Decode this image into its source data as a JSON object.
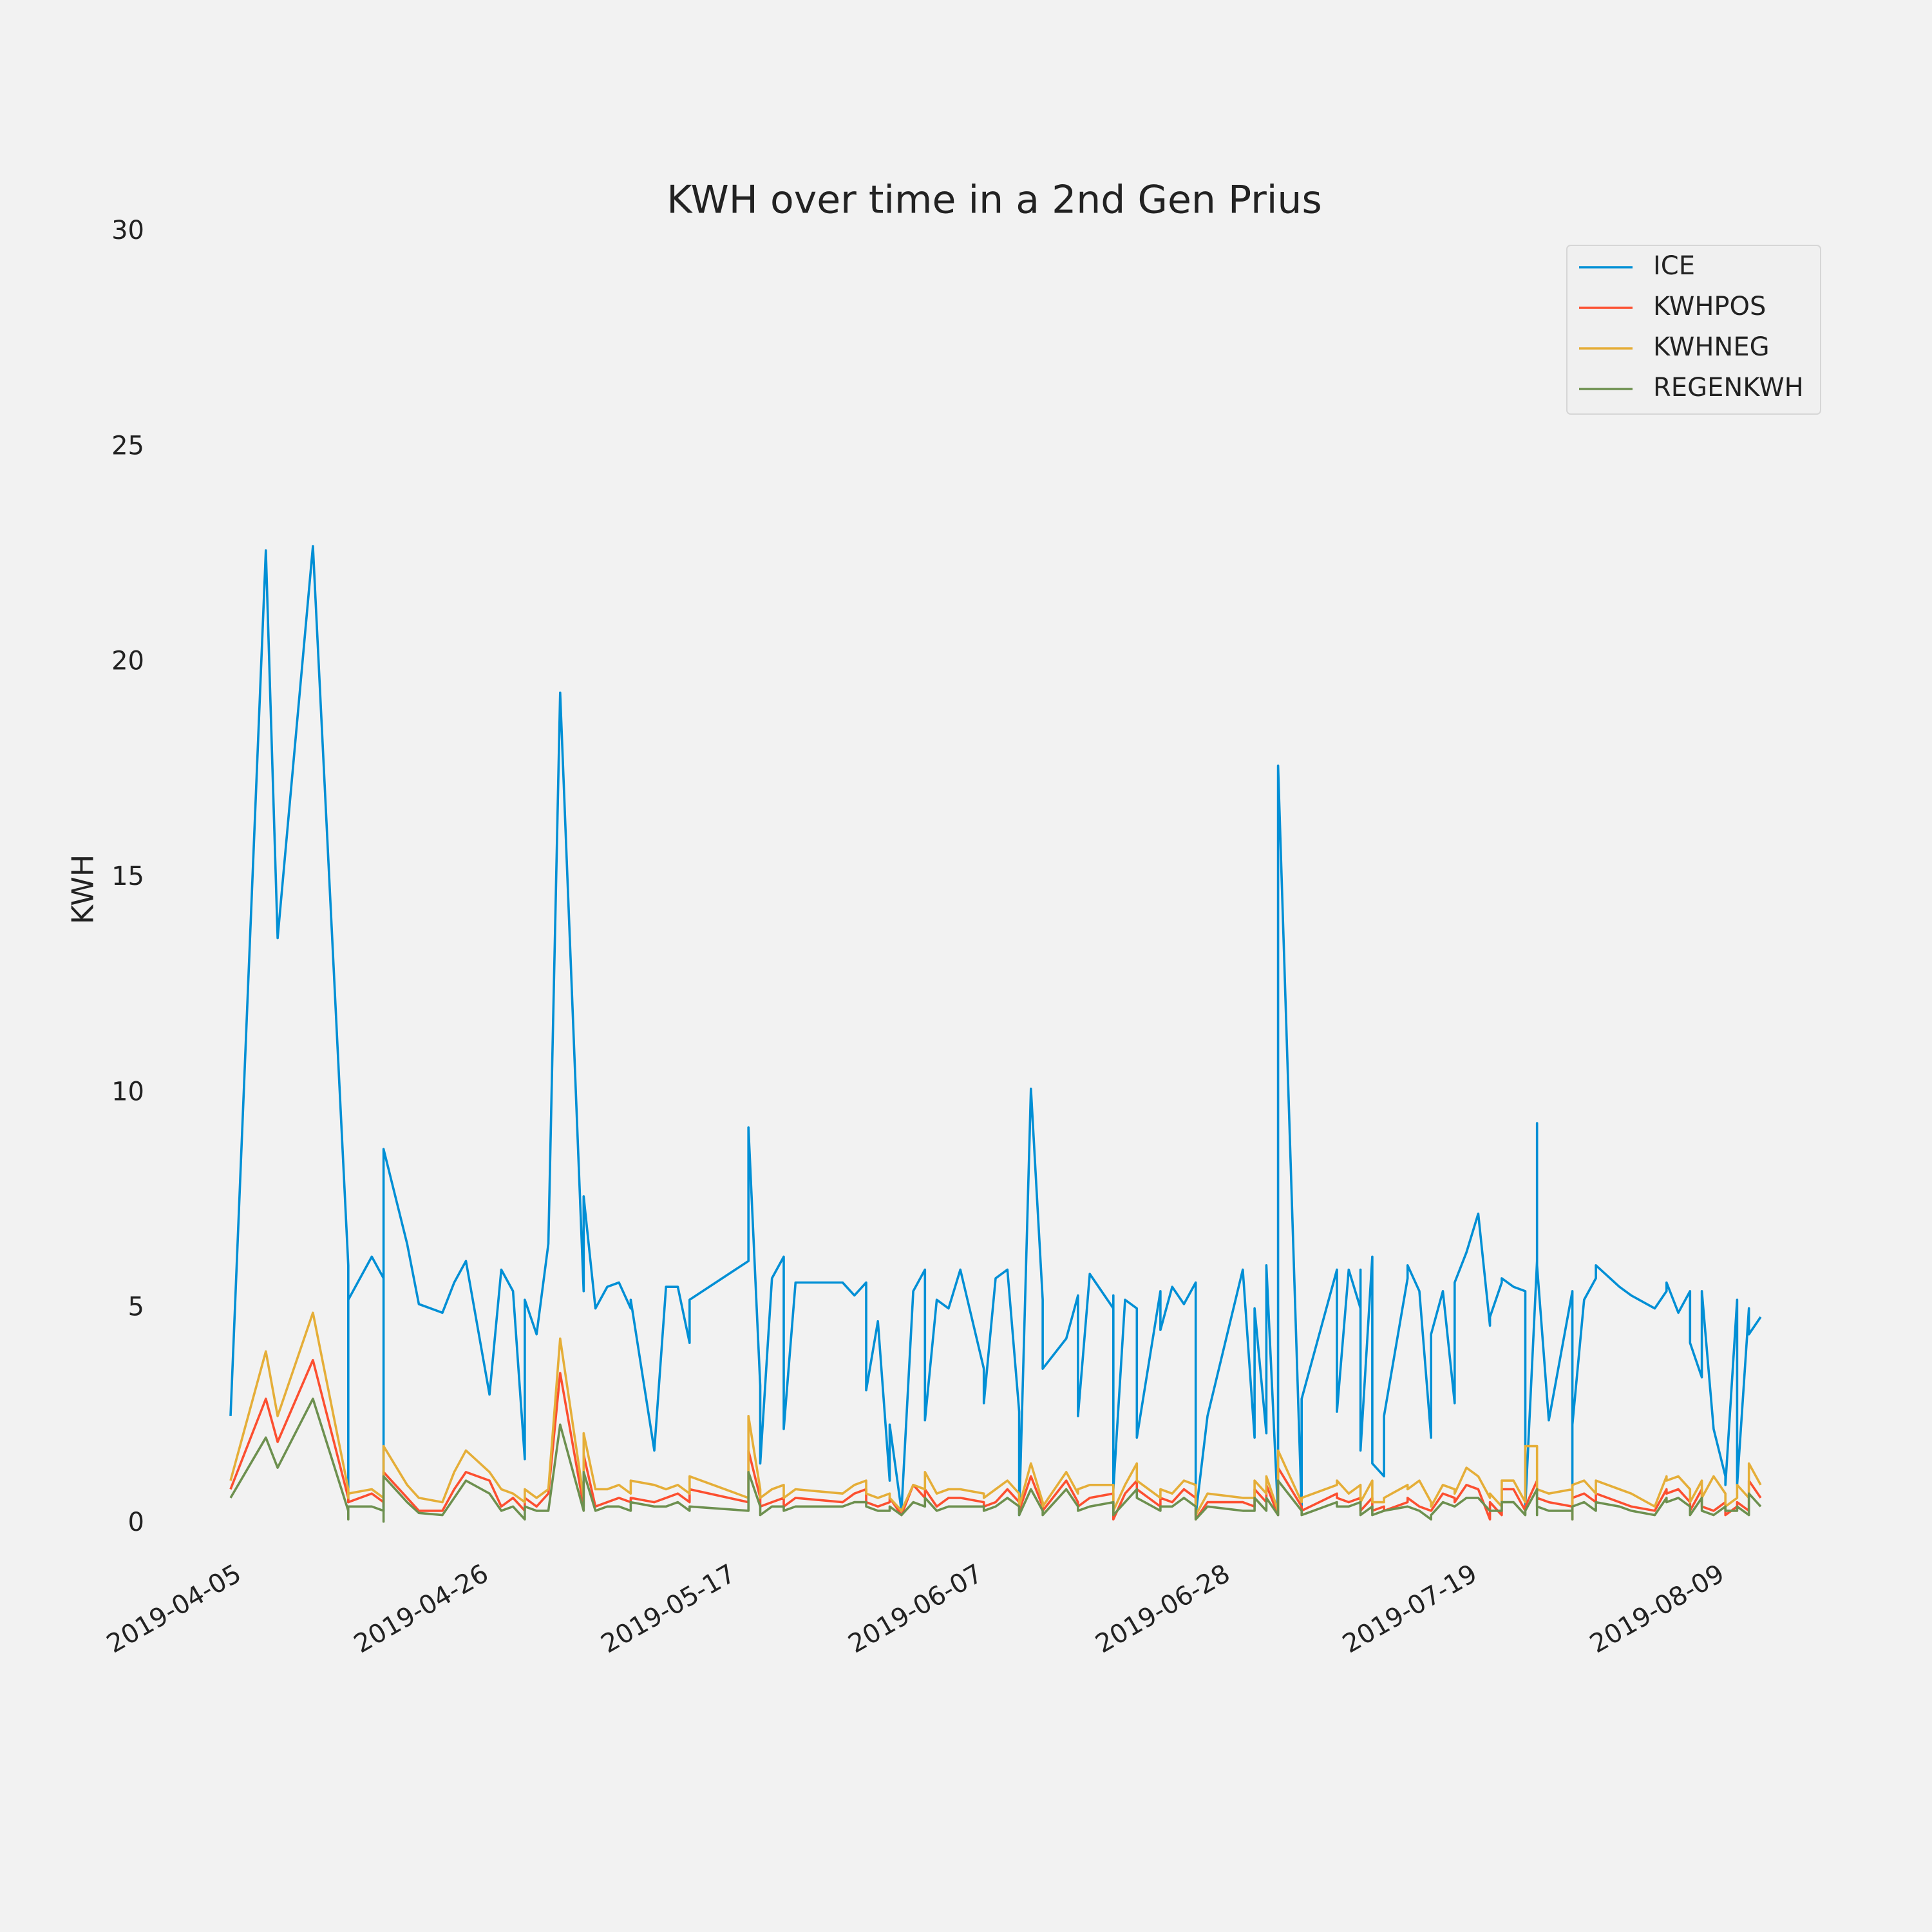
{
  "chart_data": {
    "type": "line",
    "title": "KWH over time in a 2nd Gen Prius",
    "ylabel": "KWH",
    "xlim": [
      "2019-04-05",
      "2019-08-13"
    ],
    "xticks": [
      "2019-04-05",
      "2019-04-26",
      "2019-05-17",
      "2019-06-07",
      "2019-06-28",
      "2019-07-19",
      "2019-08-09"
    ],
    "ylim": [
      0,
      30
    ],
    "yticks": [
      0,
      5,
      10,
      15,
      20,
      25,
      30
    ],
    "grid": false,
    "legend": "upper right",
    "x": [
      "2019-04-05",
      "2019-04-08",
      "2019-04-09",
      "2019-04-12",
      "2019-04-15",
      "2019-04-15",
      "2019-04-15",
      "2019-04-17",
      "2019-04-18",
      "2019-04-18",
      "2019-04-18",
      "2019-04-20",
      "2019-04-21",
      "2019-04-23",
      "2019-04-24",
      "2019-04-25",
      "2019-04-27",
      "2019-04-28",
      "2019-04-29",
      "2019-04-30",
      "2019-04-30",
      "2019-05-01",
      "2019-05-02",
      "2019-05-03",
      "2019-05-05",
      "2019-05-05",
      "2019-05-06",
      "2019-05-07",
      "2019-05-08",
      "2019-05-09",
      "2019-05-09",
      "2019-05-11",
      "2019-05-12",
      "2019-05-13",
      "2019-05-14",
      "2019-05-14",
      "2019-05-19",
      "2019-05-19",
      "2019-05-20",
      "2019-05-20",
      "2019-05-21",
      "2019-05-22",
      "2019-05-22",
      "2019-05-23",
      "2019-05-27",
      "2019-05-28",
      "2019-05-29",
      "2019-05-29",
      "2019-05-30",
      "2019-05-31",
      "2019-05-31",
      "2019-06-01",
      "2019-06-02",
      "2019-06-03",
      "2019-06-03",
      "2019-06-04",
      "2019-06-05",
      "2019-06-06",
      "2019-06-08",
      "2019-06-08",
      "2019-06-09",
      "2019-06-10",
      "2019-06-11",
      "2019-06-11",
      "2019-06-12",
      "2019-06-13",
      "2019-06-13",
      "2019-06-15",
      "2019-06-16",
      "2019-06-16",
      "2019-06-17",
      "2019-06-19",
      "2019-06-19",
      "2019-06-19",
      "2019-06-20",
      "2019-06-21",
      "2019-06-21",
      "2019-06-23",
      "2019-06-23",
      "2019-06-24",
      "2019-06-25",
      "2019-06-26",
      "2019-06-26",
      "2019-06-26",
      "2019-06-27",
      "2019-06-30",
      "2019-07-01",
      "2019-07-01",
      "2019-07-02",
      "2019-07-02",
      "2019-07-02",
      "2019-07-03",
      "2019-07-03",
      "2019-07-05",
      "2019-07-05",
      "2019-07-08",
      "2019-07-08",
      "2019-07-09",
      "2019-07-10",
      "2019-07-10",
      "2019-07-10",
      "2019-07-11",
      "2019-07-11",
      "2019-07-12",
      "2019-07-12",
      "2019-07-14",
      "2019-07-14",
      "2019-07-15",
      "2019-07-16",
      "2019-07-16",
      "2019-07-17",
      "2019-07-18",
      "2019-07-18",
      "2019-07-19",
      "2019-07-20",
      "2019-07-21",
      "2019-07-21",
      "2019-07-22",
      "2019-07-22",
      "2019-07-23",
      "2019-07-24",
      "2019-07-24",
      "2019-07-25",
      "2019-07-25",
      "2019-07-25",
      "2019-07-26",
      "2019-07-28",
      "2019-07-28",
      "2019-07-28",
      "2019-07-29",
      "2019-07-30",
      "2019-07-30",
      "2019-08-01",
      "2019-08-02",
      "2019-08-04",
      "2019-08-05",
      "2019-08-05",
      "2019-08-06",
      "2019-08-07",
      "2019-08-07",
      "2019-08-08",
      "2019-08-08",
      "2019-08-09",
      "2019-08-10",
      "2019-08-10",
      "2019-08-11",
      "2019-08-11",
      "2019-08-12",
      "2019-08-12",
      "2019-08-13"
    ],
    "series": [
      {
        "name": "ICE",
        "color": "#008fd5",
        "values": [
          2.5,
          22.6,
          13.6,
          22.7,
          6.0,
          0.5,
          5.2,
          6.2,
          5.7,
          0.3,
          8.7,
          6.5,
          5.1,
          4.9,
          5.6,
          6.1,
          3.0,
          5.9,
          5.4,
          1.5,
          5.2,
          4.4,
          6.5,
          19.3,
          5.4,
          7.6,
          5.0,
          5.5,
          5.6,
          5.0,
          5.2,
          1.7,
          5.5,
          5.5,
          4.2,
          5.2,
          6.1,
          9.2,
          3.2,
          1.4,
          5.7,
          6.2,
          2.2,
          5.6,
          5.6,
          5.3,
          5.6,
          3.1,
          4.7,
          1.0,
          2.3,
          0.3,
          5.4,
          5.9,
          2.4,
          5.2,
          5.0,
          5.9,
          3.6,
          2.8,
          5.7,
          5.9,
          2.6,
          0.2,
          10.1,
          5.2,
          3.6,
          4.3,
          5.3,
          2.5,
          5.8,
          5.0,
          5.3,
          0.8,
          5.2,
          5.0,
          2.0,
          5.4,
          4.5,
          5.5,
          5.1,
          5.6,
          4.9,
          0.2,
          2.5,
          5.9,
          2.0,
          5.0,
          2.1,
          5.5,
          6.0,
          0.2,
          17.6,
          0.3,
          2.9,
          5.9,
          2.6,
          5.9,
          5.0,
          5.9,
          1.7,
          6.2,
          1.4,
          1.1,
          2.5,
          5.7,
          6.0,
          5.4,
          2.0,
          4.4,
          5.4,
          2.8,
          5.6,
          6.3,
          7.2,
          4.6,
          4.8,
          5.6,
          5.7,
          5.5,
          5.4,
          0.4,
          6.1,
          9.3,
          6.0,
          2.4,
          5.4,
          0.3,
          2.3,
          5.2,
          5.7,
          6.0,
          5.5,
          5.3,
          5.0,
          5.4,
          5.6,
          4.9,
          5.4,
          4.2,
          3.4,
          5.4,
          2.2,
          1.1,
          0.9,
          5.2,
          0.9,
          5.0,
          4.4,
          4.8
        ]
      },
      {
        "name": "KWHPOS",
        "color": "#fc4f30",
        "values": [
          0.8,
          2.9,
          1.9,
          3.8,
          0.6,
          0.5,
          0.5,
          0.7,
          0.5,
          0.4,
          1.2,
          0.6,
          0.3,
          0.3,
          0.8,
          1.2,
          1.0,
          0.4,
          0.6,
          0.3,
          0.6,
          0.4,
          0.7,
          3.5,
          0.4,
          1.6,
          0.4,
          0.5,
          0.6,
          0.5,
          0.6,
          0.5,
          0.6,
          0.7,
          0.5,
          0.8,
          0.5,
          1.7,
          0.6,
          0.4,
          0.5,
          0.6,
          0.4,
          0.6,
          0.5,
          0.7,
          0.8,
          0.5,
          0.4,
          0.5,
          0.6,
          0.2,
          0.9,
          0.6,
          0.8,
          0.4,
          0.6,
          0.6,
          0.5,
          0.4,
          0.5,
          0.8,
          0.5,
          0.3,
          1.1,
          0.4,
          0.3,
          1.0,
          0.5,
          0.4,
          0.6,
          0.7,
          0.6,
          0.1,
          0.7,
          1.0,
          0.8,
          0.4,
          0.6,
          0.5,
          0.8,
          0.6,
          0.3,
          0.1,
          0.5,
          0.5,
          0.4,
          0.8,
          0.5,
          0.6,
          0.9,
          0.2,
          1.3,
          0.4,
          0.3,
          0.7,
          0.6,
          0.5,
          0.6,
          0.4,
          0.3,
          0.6,
          0.3,
          0.4,
          0.3,
          0.5,
          0.6,
          0.4,
          0.3,
          0.3,
          0.7,
          0.6,
          0.5,
          0.9,
          0.8,
          0.1,
          0.5,
          0.2,
          0.8,
          0.8,
          0.3,
          0.4,
          1.0,
          0.4,
          0.6,
          0.5,
          0.4,
          0.1,
          0.6,
          0.7,
          0.5,
          0.7,
          0.5,
          0.4,
          0.3,
          0.8,
          0.7,
          0.8,
          0.5,
          0.3,
          0.8,
          0.4,
          0.3,
          0.5,
          0.2,
          0.4,
          0.5,
          0.3,
          1.0,
          0.6
        ]
      },
      {
        "name": "KWHNEG",
        "color": "#e5ae38",
        "values": [
          1.0,
          4.0,
          2.5,
          4.9,
          0.8,
          0.6,
          0.7,
          0.8,
          0.6,
          0.5,
          1.8,
          0.9,
          0.6,
          0.5,
          1.2,
          1.7,
          1.2,
          0.8,
          0.7,
          0.5,
          0.8,
          0.6,
          0.8,
          4.3,
          0.6,
          2.1,
          0.8,
          0.8,
          0.9,
          0.7,
          1.0,
          0.9,
          0.8,
          0.9,
          0.7,
          1.1,
          0.6,
          2.5,
          0.8,
          0.6,
          0.8,
          0.9,
          0.6,
          0.8,
          0.7,
          0.9,
          1.0,
          0.7,
          0.6,
          0.7,
          0.6,
          0.3,
          0.9,
          0.8,
          1.2,
          0.7,
          0.8,
          0.8,
          0.7,
          0.6,
          0.8,
          1.0,
          0.7,
          0.4,
          1.4,
          0.5,
          0.4,
          1.2,
          0.7,
          0.8,
          0.9,
          0.9,
          0.8,
          0.3,
          0.9,
          1.4,
          1.0,
          0.6,
          0.8,
          0.7,
          1.0,
          0.9,
          0.5,
          0.2,
          0.7,
          0.6,
          0.6,
          1.0,
          0.7,
          0.8,
          1.1,
          0.3,
          1.7,
          0.5,
          0.6,
          0.9,
          1.0,
          0.7,
          0.9,
          0.7,
          0.5,
          1.0,
          0.5,
          0.5,
          0.6,
          0.9,
          0.8,
          1.0,
          0.5,
          0.4,
          0.9,
          0.8,
          0.7,
          1.3,
          1.1,
          0.6,
          0.7,
          0.4,
          1.0,
          1.0,
          0.5,
          1.8,
          1.8,
          0.5,
          0.8,
          0.7,
          0.8,
          0.2,
          0.9,
          1.0,
          0.7,
          1.0,
          0.8,
          0.7,
          0.4,
          1.1,
          1.0,
          1.1,
          0.8,
          0.5,
          1.0,
          0.6,
          1.1,
          0.7,
          0.4,
          0.6,
          0.9,
          0.6,
          1.4,
          0.9
        ]
      },
      {
        "name": "REGENKWH",
        "color": "#6d904f",
        "values": [
          0.6,
          2.0,
          1.3,
          2.9,
          0.3,
          0.1,
          0.4,
          0.4,
          0.3,
          0.05,
          1.1,
          0.5,
          0.25,
          0.2,
          0.6,
          1.0,
          0.7,
          0.3,
          0.4,
          0.1,
          0.4,
          0.3,
          0.3,
          2.3,
          0.3,
          1.2,
          0.3,
          0.4,
          0.4,
          0.3,
          0.5,
          0.4,
          0.4,
          0.5,
          0.3,
          0.4,
          0.3,
          1.2,
          0.4,
          0.2,
          0.4,
          0.4,
          0.3,
          0.4,
          0.4,
          0.5,
          0.5,
          0.4,
          0.3,
          0.3,
          0.4,
          0.2,
          0.5,
          0.4,
          0.6,
          0.3,
          0.4,
          0.4,
          0.4,
          0.3,
          0.4,
          0.6,
          0.4,
          0.2,
          0.8,
          0.3,
          0.2,
          0.8,
          0.4,
          0.3,
          0.4,
          0.5,
          0.4,
          0.2,
          0.5,
          0.8,
          0.6,
          0.3,
          0.4,
          0.4,
          0.6,
          0.4,
          0.2,
          0.1,
          0.4,
          0.3,
          0.3,
          0.6,
          0.3,
          0.4,
          0.6,
          0.2,
          1.0,
          0.3,
          0.2,
          0.5,
          0.4,
          0.4,
          0.5,
          0.3,
          0.2,
          0.4,
          0.2,
          0.3,
          0.3,
          0.4,
          0.4,
          0.3,
          0.1,
          0.2,
          0.5,
          0.4,
          0.4,
          0.6,
          0.6,
          0.3,
          0.3,
          0.3,
          0.5,
          0.5,
          0.2,
          0.3,
          0.8,
          0.2,
          0.4,
          0.3,
          0.3,
          0.1,
          0.4,
          0.5,
          0.3,
          0.5,
          0.4,
          0.3,
          0.2,
          0.6,
          0.5,
          0.6,
          0.4,
          0.2,
          0.6,
          0.3,
          0.2,
          0.4,
          0.3,
          0.3,
          0.4,
          0.2,
          0.7,
          0.4
        ]
      }
    ]
  }
}
